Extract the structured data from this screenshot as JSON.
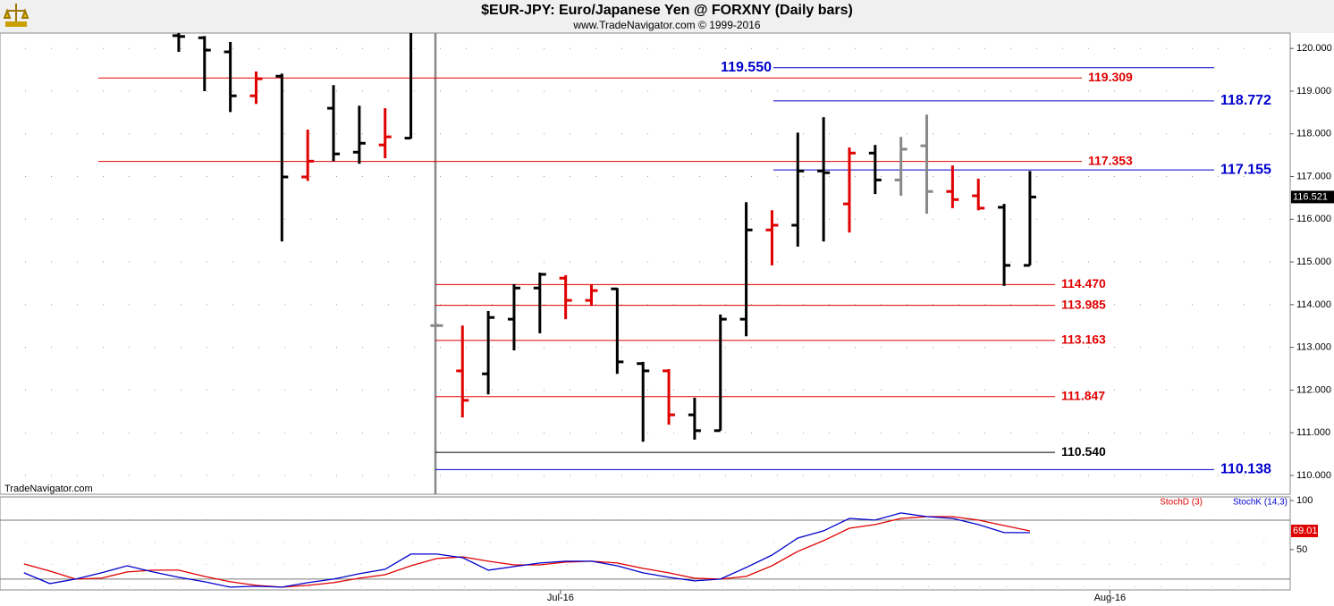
{
  "chart_data": [
    {
      "type": "ohlc",
      "title": "$EUR-JPY:  Euro/Japanese Yen @ FORXNY  (Daily bars)",
      "subtitle": "www.TradeNavigator.com © 1999-2016",
      "watermark": "TradeNavigator.com",
      "x": [
        0,
        1,
        2,
        3,
        4,
        5,
        6,
        7,
        8,
        9,
        10,
        11,
        12,
        13,
        14,
        15,
        16,
        17,
        18,
        19,
        20,
        21,
        22,
        23,
        24,
        25,
        26,
        27,
        28,
        29,
        30,
        31,
        32,
        33
      ],
      "open": [
        120.3,
        120.25,
        119.92,
        118.89,
        119.35,
        116.99,
        118.6,
        117.57,
        117.74,
        117.9,
        113.51,
        112.45,
        112.38,
        113.66,
        114.39,
        114.62,
        114.1,
        114.37,
        112.62,
        112.45,
        111.42,
        111.05,
        113.66,
        115.75,
        115.86,
        117.13,
        116.36,
        117.55,
        116.92,
        117.72,
        116.65,
        116.55,
        116.28,
        114.92
      ],
      "high": [
        120.45,
        120.29,
        120.15,
        119.46,
        119.41,
        118.1,
        119.14,
        118.66,
        118.6,
        120.5,
        113.55,
        113.51,
        113.85,
        114.48,
        114.75,
        114.69,
        114.48,
        114.39,
        112.66,
        112.49,
        111.82,
        113.77,
        116.4,
        116.21,
        118.03,
        118.39,
        117.68,
        117.74,
        117.93,
        118.45,
        117.26,
        116.95,
        116.36,
        117.13
      ],
      "low": [
        119.92,
        119.0,
        118.51,
        118.7,
        115.48,
        116.9,
        117.36,
        117.3,
        117.43,
        117.89,
        113.5,
        111.36,
        111.9,
        112.93,
        113.33,
        113.66,
        113.97,
        112.38,
        110.79,
        111.19,
        110.84,
        111.05,
        113.26,
        114.92,
        115.36,
        115.48,
        115.69,
        116.59,
        116.55,
        116.13,
        116.26,
        116.21,
        114.44,
        114.92
      ],
      "close": [
        120.28,
        119.96,
        118.89,
        119.29,
        116.99,
        117.36,
        117.53,
        117.78,
        117.93,
        120.4,
        113.51,
        111.76,
        113.7,
        114.39,
        114.71,
        114.1,
        114.33,
        112.66,
        112.45,
        111.42,
        111.05,
        113.66,
        115.75,
        115.86,
        117.13,
        117.09,
        117.55,
        116.92,
        117.64,
        116.65,
        116.46,
        116.26,
        114.92,
        116.521
      ],
      "colors": [
        "#000",
        "#000",
        "#000",
        "#e00000",
        "#000",
        "#e00000",
        "#000",
        "#000",
        "#e00000",
        "#000",
        "#888",
        "#e00000",
        "#000",
        "#000",
        "#000",
        "#e00000",
        "#e00000",
        "#000",
        "#000",
        "#e00000",
        "#000",
        "#000",
        "#000",
        "#e00000",
        "#000",
        "#000",
        "#e00000",
        "#000",
        "#888",
        "#888",
        "#e00000",
        "#e00000",
        "#000",
        "#000"
      ],
      "xlim": [
        -6.93,
        43.09
      ],
      "xticks": [
        {
          "value": 14.8,
          "label": "Jul-16"
        },
        {
          "value": 36.1,
          "label": "Aug-16"
        }
      ],
      "ylim": [
        109.56,
        120.36
      ],
      "yticks": [
        {
          "value": 110,
          "label": "110.000"
        },
        {
          "value": 111,
          "label": "111.000"
        },
        {
          "value": 112,
          "label": "112.000"
        },
        {
          "value": 113,
          "label": "113.000"
        },
        {
          "value": 114,
          "label": "114.000"
        },
        {
          "value": 115,
          "label": "115.000"
        },
        {
          "value": 116,
          "label": "116.000"
        },
        {
          "value": 117,
          "label": "117.000"
        },
        {
          "value": 118,
          "label": "118.000"
        },
        {
          "value": 119,
          "label": "119.000"
        },
        {
          "value": 120,
          "label": "120.000"
        }
      ],
      "grid": true,
      "levels": [
        {
          "value": 119.55,
          "label": "119.550",
          "color": "#0000cc"
        },
        {
          "value": 119.309,
          "label": "119.309",
          "color": "#e00000"
        },
        {
          "value": 118.772,
          "label": "118.772",
          "color": "#0000cc"
        },
        {
          "value": 117.353,
          "label": "117.353",
          "color": "#e00000"
        },
        {
          "value": 117.155,
          "label": "117.155",
          "color": "#0000cc"
        },
        {
          "value": 114.47,
          "label": "114.470",
          "color": "#e00000"
        },
        {
          "value": 113.985,
          "label": "113.985",
          "color": "#e00000"
        },
        {
          "value": 113.163,
          "label": "113.163",
          "color": "#e00000"
        },
        {
          "value": 111.847,
          "label": "111.847",
          "color": "#e00000"
        },
        {
          "value": 110.54,
          "label": "110.540",
          "color": "#000000"
        },
        {
          "value": 110.138,
          "label": "110.138",
          "color": "#0000cc"
        }
      ],
      "last_price": {
        "value": 116.521,
        "label": "116.521"
      }
    },
    {
      "type": "line",
      "x": [
        -6,
        -5,
        -4,
        -3,
        -2,
        -1,
        0,
        1,
        2,
        3,
        4,
        5,
        6,
        7,
        8,
        9,
        10,
        11,
        12,
        13,
        14,
        15,
        16,
        17,
        18,
        19,
        20,
        21,
        22,
        23,
        24,
        25,
        26,
        27,
        28,
        29,
        30,
        31,
        32,
        33
      ],
      "series": [
        {
          "name": "StochD (3)",
          "color": "#e00000",
          "values": [
            35.5,
            28.2,
            20,
            20.9,
            27.3,
            29.1,
            29.1,
            22.7,
            17.3,
            13.6,
            11.8,
            13.6,
            16.4,
            20.9,
            24.5,
            33.6,
            40.9,
            42.7,
            38.2,
            34.5,
            34.5,
            37.3,
            38.2,
            36.4,
            30.9,
            26.4,
            20.9,
            20,
            22.7,
            33.6,
            48.2,
            59.1,
            71.8,
            75.5,
            81.8,
            83.6,
            83.6,
            80,
            74.5,
            69.01
          ]
        },
        {
          "name": "StochK (14,3)",
          "color": "#0000cc",
          "values": [
            26.4,
            15.5,
            20,
            26.4,
            33.6,
            27.3,
            21.8,
            17.3,
            11.8,
            12.7,
            11.8,
            16.4,
            20,
            25.5,
            30,
            45.5,
            45.5,
            41.8,
            29.1,
            32.7,
            36.4,
            38.2,
            38.2,
            33.6,
            26.4,
            21.8,
            18.2,
            20,
            31.8,
            44.5,
            61.8,
            69.1,
            81.8,
            80,
            87.3,
            83.6,
            81.8,
            75.5,
            67.3,
            67.3
          ]
        }
      ],
      "xlim": [
        -6.93,
        43.09
      ],
      "ylim": [
        9,
        103.6
      ],
      "yticks": [
        50,
        100
      ],
      "hlines": [
        20,
        80
      ],
      "grid": true,
      "last_value": {
        "value": 69.01,
        "label": "69.01"
      }
    }
  ]
}
